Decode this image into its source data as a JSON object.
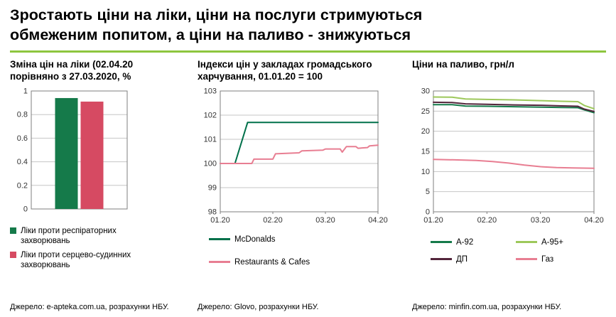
{
  "title": "Зростають ціни на ліки, ціни на послуги стримуються\nобмеженим попитом, а ціни на паливо - знижуються",
  "accent_rule_color": "#8DC63F",
  "axis_text_color": "#333333",
  "panels": [
    {
      "title": "Зміна цін на ліки (02.04.20\nпорівняно з 27.03.2020, %",
      "legend": [
        {
          "label": "Ліки проти респіраторних\nзахворювань",
          "color": "#157A4A"
        },
        {
          "label": "Ліки проти серцево-судинних\nзахворювань",
          "color": "#D64A62"
        }
      ],
      "source": "Джерело: e-apteka.com.ua, розрахунки НБУ."
    },
    {
      "title": "Індекси цін у закладах громадського\nхарчування, 01.01.20 = 100",
      "legend": [
        {
          "label": "McDonalds",
          "color": "#00704A"
        },
        {
          "label": "Restaurants & Cafes",
          "color": "#E87E92"
        }
      ],
      "source": "Джерело: Glovo, розрахунки НБУ."
    },
    {
      "title": "Ціни на паливо, грн/л",
      "legend": [
        {
          "label": "А-92",
          "color": "#157A4A"
        },
        {
          "label": "А-95+",
          "color": "#9DC85B"
        },
        {
          "label": "ДП",
          "color": "#53253B"
        },
        {
          "label": "Газ",
          "color": "#E87E92"
        }
      ],
      "source": "Джерело: minfin.com.ua, розрахунки НБУ."
    }
  ],
  "chart_data": [
    {
      "type": "bar",
      "title": "Зміна цін на ліки (02.04.20 порівняно з 27.03.2020, %",
      "categories": [
        "Ліки проти респіраторних захворювань",
        "Ліки проти серцево-судинних захворювань"
      ],
      "values": [
        0.94,
        0.91
      ],
      "colors": [
        "#157A4A",
        "#D64A62"
      ],
      "xlabel": "",
      "ylabel": "",
      "ylim": [
        0,
        1
      ],
      "yticks": [
        0,
        0.2,
        0.4,
        0.6,
        0.8,
        1
      ],
      "grid": true,
      "legend_position": "bottom"
    },
    {
      "type": "line",
      "title": "Індекси цін у закладах громадського харчування, 01.01.20 = 100",
      "xlabel": "",
      "ylabel": "",
      "xlim": [
        0,
        3
      ],
      "ylim": [
        98,
        103
      ],
      "yticks": [
        98,
        99,
        100,
        101,
        102,
        103
      ],
      "xticks": [
        {
          "pos": 0,
          "label": "01.20"
        },
        {
          "pos": 1,
          "label": "02.20"
        },
        {
          "pos": 2,
          "label": "03.20"
        },
        {
          "pos": 3,
          "label": "04.20"
        }
      ],
      "grid": true,
      "legend_position": "bottom",
      "series": [
        {
          "name": "McDonalds",
          "color": "#00704A",
          "points": [
            [
              0,
              100
            ],
            [
              0.28,
              100
            ],
            [
              0.52,
              101.7
            ],
            [
              3,
              101.7
            ]
          ]
        },
        {
          "name": "Restaurants & Cafes",
          "color": "#E87E92",
          "points": [
            [
              0,
              100
            ],
            [
              0.6,
              100
            ],
            [
              0.64,
              100.18
            ],
            [
              1.0,
              100.18
            ],
            [
              1.05,
              100.4
            ],
            [
              1.5,
              100.44
            ],
            [
              1.55,
              100.52
            ],
            [
              1.95,
              100.55
            ],
            [
              2.0,
              100.6
            ],
            [
              2.28,
              100.6
            ],
            [
              2.32,
              100.47
            ],
            [
              2.4,
              100.7
            ],
            [
              2.58,
              100.7
            ],
            [
              2.62,
              100.63
            ],
            [
              2.8,
              100.66
            ],
            [
              2.84,
              100.73
            ],
            [
              3,
              100.76
            ]
          ]
        }
      ]
    },
    {
      "type": "line",
      "title": "Ціни на паливо, грн/л",
      "xlabel": "",
      "ylabel": "грн/л",
      "xlim": [
        0,
        3
      ],
      "ylim": [
        0,
        30
      ],
      "yticks": [
        0,
        5,
        10,
        15,
        20,
        25,
        30
      ],
      "xticks": [
        {
          "pos": 0,
          "label": "01.20"
        },
        {
          "pos": 1,
          "label": "02.20"
        },
        {
          "pos": 2,
          "label": "03.20"
        },
        {
          "pos": 3,
          "label": "04.20"
        }
      ],
      "grid": true,
      "legend_position": "bottom",
      "series": [
        {
          "name": "А-92",
          "color": "#157A4A",
          "points": [
            [
              0,
              26.6
            ],
            [
              0.35,
              26.6
            ],
            [
              0.6,
              26.25
            ],
            [
              1.0,
              26.2
            ],
            [
              1.5,
              26.1
            ],
            [
              2.0,
              26.0
            ],
            [
              2.4,
              25.9
            ],
            [
              2.7,
              25.85
            ],
            [
              2.82,
              25.3
            ],
            [
              3,
              24.6
            ]
          ]
        },
        {
          "name": "А-95+",
          "color": "#9DC85B",
          "points": [
            [
              0,
              28.5
            ],
            [
              0.35,
              28.45
            ],
            [
              0.6,
              28.0
            ],
            [
              1.0,
              27.9
            ],
            [
              1.5,
              27.8
            ],
            [
              2.0,
              27.6
            ],
            [
              2.4,
              27.45
            ],
            [
              2.7,
              27.35
            ],
            [
              2.82,
              26.4
            ],
            [
              3,
              25.6
            ]
          ]
        },
        {
          "name": "ДП",
          "color": "#53253B",
          "points": [
            [
              0,
              27.2
            ],
            [
              0.35,
              27.15
            ],
            [
              0.6,
              26.8
            ],
            [
              1.0,
              26.7
            ],
            [
              1.5,
              26.55
            ],
            [
              2.0,
              26.45
            ],
            [
              2.4,
              26.3
            ],
            [
              2.7,
              26.2
            ],
            [
              2.82,
              25.5
            ],
            [
              3,
              24.9
            ]
          ]
        },
        {
          "name": "Газ",
          "color": "#E87E92",
          "points": [
            [
              0,
              13.0
            ],
            [
              0.4,
              12.9
            ],
            [
              0.8,
              12.75
            ],
            [
              1.1,
              12.5
            ],
            [
              1.4,
              12.1
            ],
            [
              1.7,
              11.6
            ],
            [
              2.0,
              11.2
            ],
            [
              2.3,
              11.0
            ],
            [
              2.6,
              10.9
            ],
            [
              3,
              10.8
            ]
          ]
        }
      ]
    }
  ]
}
